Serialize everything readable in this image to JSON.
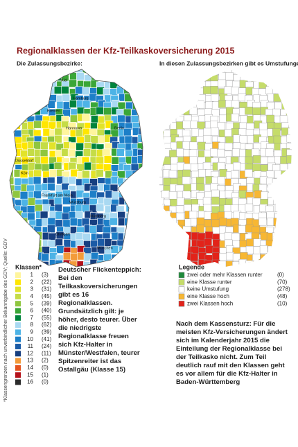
{
  "title": "Regionalklassen der Kfz-Teilkaskoversicherung 2015",
  "source_note": "*Klassengrenzen nach unverbindlicher Bekanntgabe des GDV; Quelle: GDV",
  "left_map": {
    "subtitle": "Die Zulassungsbezirke:",
    "city_labels": [
      "Kiel",
      "Hamburg",
      "Bremen",
      "Hannover",
      "Berlin",
      "Düsseldorf",
      "Köln",
      "Frankfurt am Main",
      "Würzburg",
      "Nürnberg",
      "Stuttgart",
      "München"
    ],
    "legend_title": "Klassen*",
    "legend": [
      {
        "label": "1",
        "count": "(3)",
        "color": "#fff59d"
      },
      {
        "label": "2",
        "count": "(22)",
        "color": "#ffe600"
      },
      {
        "label": "3",
        "count": "(31)",
        "color": "#e2e32a"
      },
      {
        "label": "4",
        "count": "(45)",
        "color": "#c5dc46"
      },
      {
        "label": "5",
        "count": "(39)",
        "color": "#8fc63f"
      },
      {
        "label": "6",
        "count": "(40)",
        "color": "#3aa637"
      },
      {
        "label": "7",
        "count": "(55)",
        "color": "#00843d"
      },
      {
        "label": "8",
        "count": "(62)",
        "color": "#a9d9f2"
      },
      {
        "label": "9",
        "count": "(39)",
        "color": "#4db3e6"
      },
      {
        "label": "10",
        "count": "(41)",
        "color": "#1d7fc8"
      },
      {
        "label": "11",
        "count": "(24)",
        "color": "#1b5ba6"
      },
      {
        "label": "12",
        "count": "(11)",
        "color": "#173f80"
      },
      {
        "label": "13",
        "count": "(2)",
        "color": "#f39b3a"
      },
      {
        "label": "14",
        "count": "(0)",
        "color": "#e4531f"
      },
      {
        "label": "15",
        "count": "(1)",
        "color": "#b5121b"
      },
      {
        "label": "16",
        "count": "(0)",
        "color": "#2b2b2b"
      }
    ],
    "text": "Deutscher Flickenteppich: Bei den Teilkaskoversicherungen gibt es 16 Regionalklassen. Grundsätzlich gilt: je höher, desto teurer. Über die niedrigste Regionalklasse freuen sich Kfz-Halter in Münster/Westfalen, teurer Spitzenreiter ist das Ostallgäu (Klasse 15)"
  },
  "right_map": {
    "subtitle": "In diesen Zulassungsbezirken gibt es Umstufungen:",
    "legend_title": "Legende",
    "legend": [
      {
        "label": "zwei oder mehr Klassen runter",
        "count": "(0)",
        "color": "#1f8a3b"
      },
      {
        "label": "eine Klasse runter",
        "count": "(70)",
        "color": "#c5dc6a"
      },
      {
        "label": "keine Umstufung",
        "count": "(278)",
        "color": "#ffffff"
      },
      {
        "label": "eine Klasse hoch",
        "count": "(48)",
        "color": "#f7b733"
      },
      {
        "label": "zwei Klassen hoch",
        "count": "(10)",
        "color": "#e2231a"
      }
    ],
    "text": "Nach dem Kassensturz: Für die meisten Kfz-Versicherungen ändert sich im Kalenderjahr 2015 die Einteilung der Regionalklasse bei der Teilkasko nicht. Zum Teil deutlich rauf mit den Klassen geht es vor allem für die Kfz-Halter in Baden-Württemberg"
  }
}
